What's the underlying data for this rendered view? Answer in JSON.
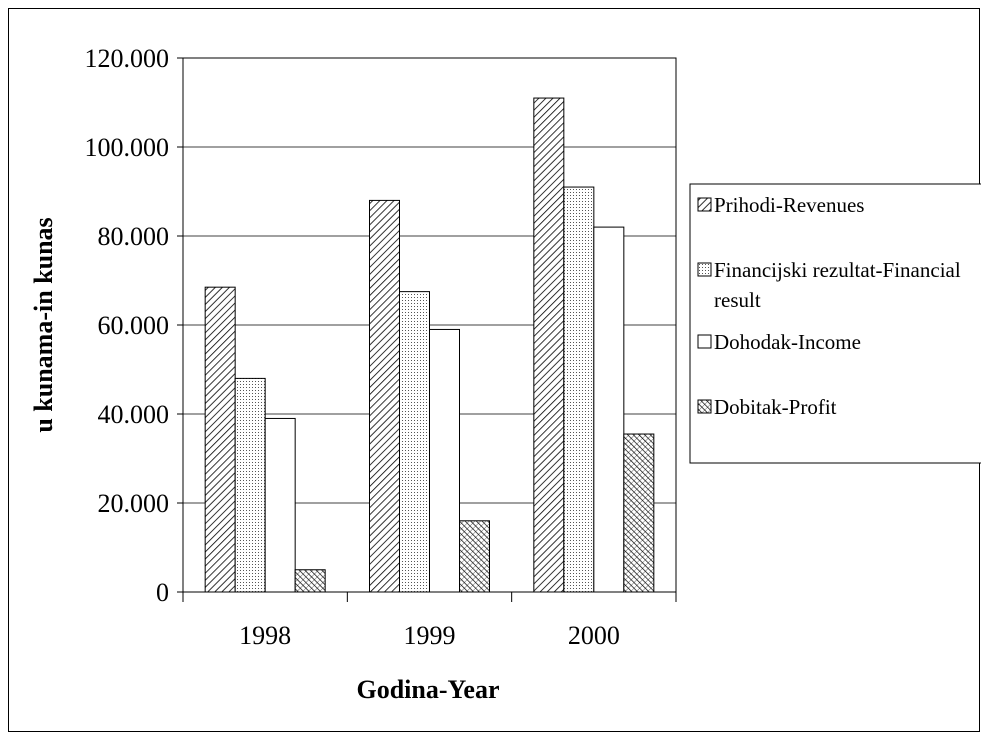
{
  "chart_data": {
    "type": "bar",
    "title": "",
    "xlabel": "Godina-Year",
    "ylabel": "u kunama-in kunas",
    "ylim": [
      0,
      120000
    ],
    "yticks": [
      0,
      20000,
      40000,
      60000,
      80000,
      100000,
      120000
    ],
    "ytick_labels": [
      "0",
      "20.000",
      "40.000",
      "60.000",
      "80.000",
      "100.000",
      "120.000"
    ],
    "categories": [
      "1998",
      "1999",
      "2000"
    ],
    "grid": true,
    "legend_position": "right",
    "series": [
      {
        "name": "Prihodi-Revenues",
        "pattern": "diagonal-dense",
        "values": [
          68500,
          88000,
          111000
        ]
      },
      {
        "name": "Financijski rezultat-Financial result",
        "pattern": "dots",
        "values": [
          48000,
          67500,
          91000
        ]
      },
      {
        "name": "Dohodak-Income",
        "pattern": "blank",
        "values": [
          39000,
          59000,
          82000
        ]
      },
      {
        "name": "Dobitak-Profit",
        "pattern": "diagonal-cross",
        "values": [
          5000,
          16000,
          35500
        ]
      }
    ],
    "legend_labels": [
      [
        "Prihodi-Revenues"
      ],
      [
        "Financijski rezultat-Financial",
        "result"
      ],
      [
        "Dohodak-Income"
      ],
      [
        "Dobitak-Profit"
      ]
    ],
    "colors": {
      "bar_stroke": "#000000",
      "grid": "#000000",
      "background": "#ffffff"
    }
  }
}
